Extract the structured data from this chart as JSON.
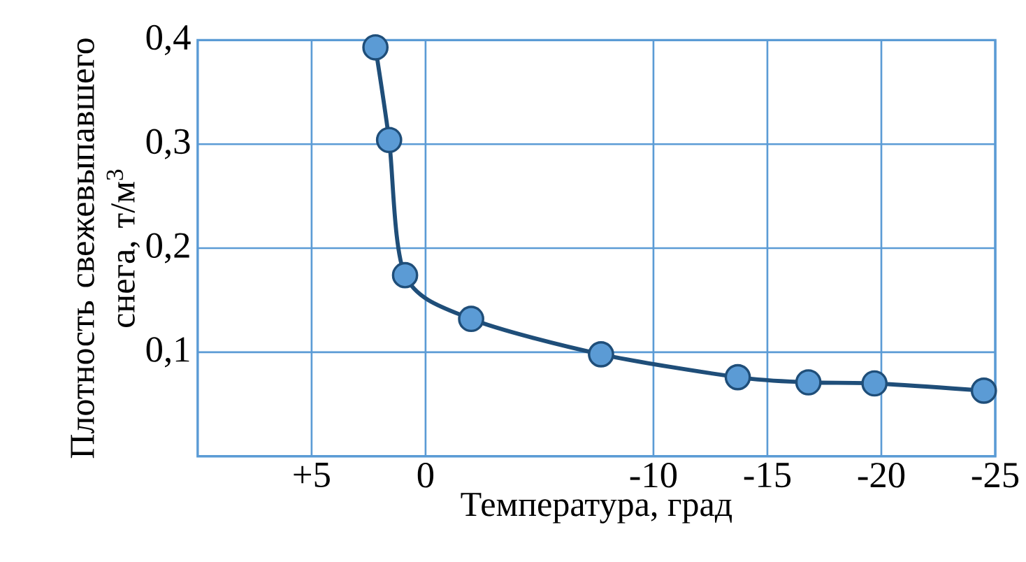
{
  "chart_data": {
    "type": "line",
    "xlabel": "Температура, град",
    "ylabel": "Плотность свежевыпавшего снега, т/м$^{3}$",
    "x": [
      2.2,
      1.6,
      0.9,
      -2.0,
      -7.7,
      -13.7,
      -16.8,
      -19.7,
      -24.5
    ],
    "series": [
      {
        "color": "#1f4e79",
        "values": [
          0.393,
          0.304,
          0.174,
          0.132,
          0.098,
          0.076,
          0.071,
          0.07,
          0.063
        ]
      }
    ],
    "xlim": [
      10,
      -25
    ],
    "xticks": [
      {
        "value": 5,
        "label": "+5"
      },
      0,
      -10,
      -15,
      -20,
      -25
    ],
    "ylim": [
      0,
      0.4
    ],
    "yticks": [
      {
        "value": 0.1,
        "label": "0,1"
      },
      {
        "value": 0.2,
        "label": "0,2"
      },
      {
        "value": 0.3,
        "label": "0,3"
      },
      {
        "value": 0.4,
        "label": "0,4"
      }
    ],
    "grid": true,
    "marker": "circle",
    "line_style": "solid"
  }
}
